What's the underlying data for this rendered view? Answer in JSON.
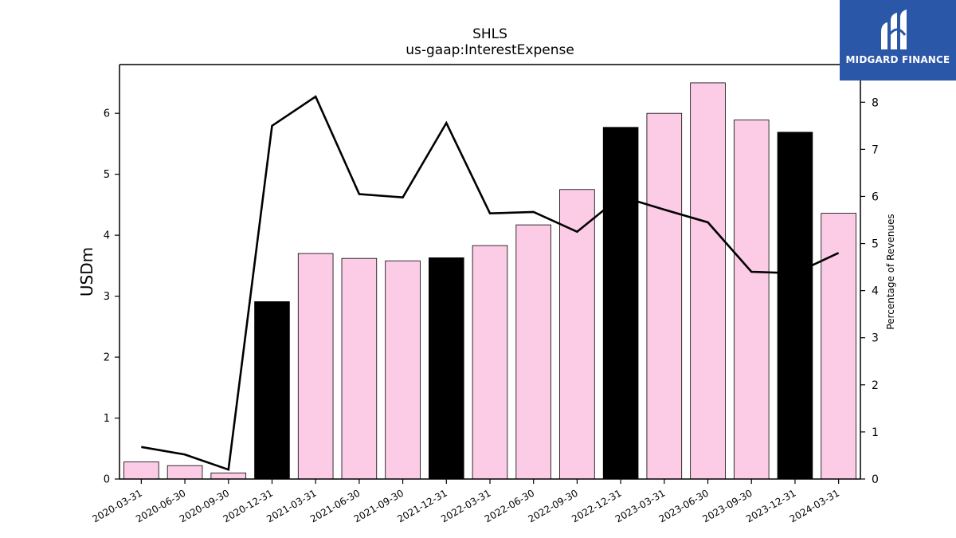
{
  "chart_data": {
    "type": "bar",
    "title": "SHLS",
    "subtitle": "us-gaap:InterestExpense",
    "ylabel": "USDm",
    "y2label": "Percentage of Revenues",
    "ylim": [
      0,
      6.8
    ],
    "y2lim": [
      0,
      8.8
    ],
    "yticks": [
      0,
      1,
      2,
      3,
      4,
      5,
      6
    ],
    "y2ticks": [
      0,
      1,
      2,
      3,
      4,
      5,
      6,
      7,
      8
    ],
    "categories": [
      "2020-03-31",
      "2020-06-30",
      "2020-09-30",
      "2020-12-31",
      "2021-03-31",
      "2021-06-30",
      "2021-09-30",
      "2021-12-31",
      "2022-03-31",
      "2022-06-30",
      "2022-09-30",
      "2022-12-31",
      "2023-03-31",
      "2023-06-30",
      "2023-09-30",
      "2023-12-31",
      "2024-03-31"
    ],
    "series": [
      {
        "kind": "bar",
        "axis": "left",
        "values": [
          0.28,
          0.22,
          0.1,
          2.91,
          3.7,
          3.62,
          3.58,
          3.63,
          3.83,
          4.17,
          4.75,
          5.77,
          6.0,
          6.5,
          5.89,
          5.69,
          4.36
        ],
        "colors": [
          "#fccbe5",
          "#fccbe5",
          "#fccbe5",
          "#000000",
          "#fccbe5",
          "#fccbe5",
          "#fccbe5",
          "#000000",
          "#fccbe5",
          "#fccbe5",
          "#fccbe5",
          "#000000",
          "#fccbe5",
          "#fccbe5",
          "#fccbe5",
          "#000000",
          "#fccbe5"
        ]
      },
      {
        "kind": "line",
        "axis": "right",
        "color": "#000000",
        "values": [
          0.68,
          0.52,
          0.2,
          7.5,
          8.12,
          6.05,
          5.98,
          7.56,
          5.64,
          5.67,
          5.25,
          6.0,
          5.72,
          5.45,
          4.4,
          4.37,
          4.8
        ]
      }
    ]
  },
  "logo": {
    "text": "MIDGARD FINANCE",
    "bg_color": "#2b57a8"
  }
}
